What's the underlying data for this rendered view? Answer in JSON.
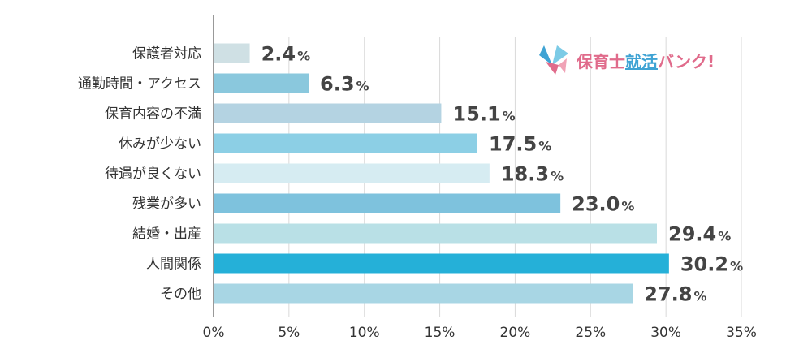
{
  "logo": {
    "prefix": "保育士",
    "highlight": "就活",
    "suffix": "バンク!",
    "colors": {
      "pink": "#e06b8b",
      "blue": "#3fa3d4"
    },
    "icon": "origami-bird-icon"
  },
  "chart_data": {
    "type": "bar",
    "orientation": "horizontal",
    "categories": [
      "保護者対応",
      "通勤時間・アクセス",
      "保育内容の不満",
      "休みが少ない",
      "待遇が良くない",
      "残業が多い",
      "結婚・出産",
      "人間関係",
      "その他"
    ],
    "values": [
      2.4,
      6.3,
      15.1,
      17.5,
      18.3,
      23.0,
      29.4,
      30.2,
      27.8
    ],
    "value_labels": [
      "2.4",
      "6.3",
      "15.1",
      "17.5",
      "18.3",
      "23.0",
      "29.4",
      "30.2",
      "27.8"
    ],
    "value_suffix": "%",
    "bar_colors": [
      "#cfe0e4",
      "#8ac8dd",
      "#b4d3e2",
      "#8ccfe5",
      "#d6ecf2",
      "#7ec2dd",
      "#b9e0e6",
      "#25b0d8",
      "#a8d6e4"
    ],
    "xlim": [
      0,
      35
    ],
    "xticks": [
      0,
      5,
      10,
      15,
      20,
      25,
      30,
      35
    ],
    "xtick_labels": [
      "0%",
      "5%",
      "10%",
      "15%",
      "20%",
      "25%",
      "30%",
      "35%"
    ],
    "grid": true,
    "title": "",
    "xlabel": "",
    "ylabel": ""
  }
}
